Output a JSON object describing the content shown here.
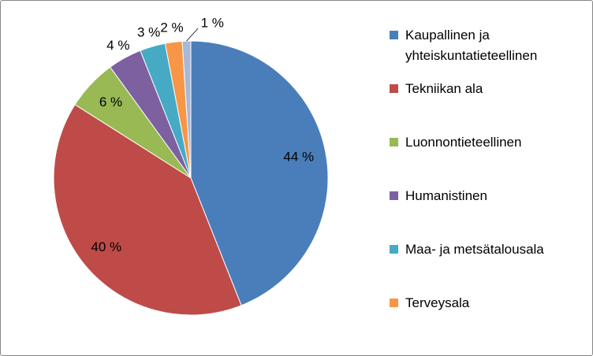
{
  "chart_data": {
    "type": "pie",
    "categories": [
      "Kaupallinen ja yhteiskuntatieteellinen",
      "Tekniikan ala",
      "Luonnontieteellinen",
      "Humanistinen",
      "Maa- ja metsätalousala",
      "Terveysala",
      null
    ],
    "values": [
      44,
      40,
      6,
      4,
      3,
      2,
      1
    ],
    "value_labels": [
      "44 %",
      "40 %",
      "6 %",
      "4 %",
      "3 %",
      "2 %",
      "1 %"
    ],
    "colors": [
      "#4a7ebb",
      "#be4b48",
      "#98b954",
      "#7d60a0",
      "#46aac5",
      "#f79646",
      "#a7b9d9"
    ],
    "legend": "right"
  }
}
